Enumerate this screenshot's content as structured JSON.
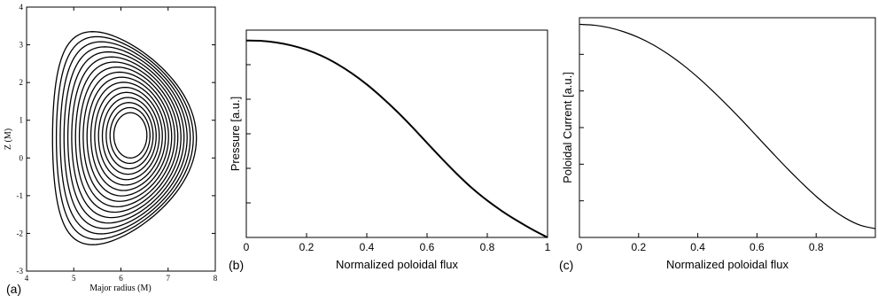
{
  "chart_data": [
    {
      "panel_label": "(a)",
      "type": "contour",
      "title": "",
      "xlabel": "Major radius (M)",
      "ylabel": "Z (M)",
      "xlim": [
        4,
        8
      ],
      "ylim": [
        -3,
        4
      ],
      "xticks": [
        "4",
        "5",
        "6",
        "7",
        "8"
      ],
      "yticks": [
        "-3",
        "-2",
        "-1",
        "0",
        "1",
        "2",
        "3",
        "4"
      ],
      "axis_center": [
        6.2,
        0.55
      ],
      "contour_count": 17,
      "outer_boundary": {
        "r_min": 4.55,
        "r_max": 7.6,
        "z_min": -2.3,
        "z_max": 3.35,
        "r_at_z_max": 5.4,
        "r_at_z_min": 5.4
      },
      "inner_contour": {
        "r_min": 5.85,
        "r_max": 6.55,
        "z_min": 0.0,
        "z_max": 1.2
      }
    },
    {
      "panel_label": "(b)",
      "type": "line",
      "title": "",
      "xlabel": "Normalized poloidal flux",
      "ylabel": "Pressure [a.u.]",
      "xlim": [
        0,
        1
      ],
      "ylim": [
        0,
        1
      ],
      "xticks": [
        "0",
        "0.2",
        "0.4",
        "0.6",
        "0.8",
        "1"
      ],
      "series": [
        {
          "x": [
            0,
            0.05,
            0.1,
            0.15,
            0.2,
            0.25,
            0.3,
            0.35,
            0.4,
            0.45,
            0.5,
            0.55,
            0.6,
            0.65,
            0.7,
            0.75,
            0.8,
            0.85,
            0.9,
            0.95,
            1.0
          ],
          "values": [
            0.95,
            0.948,
            0.94,
            0.926,
            0.905,
            0.876,
            0.838,
            0.792,
            0.738,
            0.676,
            0.608,
            0.534,
            0.456,
            0.379,
            0.305,
            0.237,
            0.178,
            0.126,
            0.08,
            0.038,
            0.0
          ]
        }
      ]
    },
    {
      "panel_label": "(c)",
      "type": "line",
      "title": "",
      "xlabel": "Normalized poloidal flux",
      "ylabel": "Poloidal Current [a.u.]",
      "xlim": [
        0,
        1
      ],
      "ylim": [
        0,
        1
      ],
      "xticks": [
        "0",
        "0.2",
        "0.4",
        "0.6",
        "0.8"
      ],
      "series": [
        {
          "x": [
            0,
            0.05,
            0.1,
            0.15,
            0.2,
            0.25,
            0.3,
            0.35,
            0.4,
            0.45,
            0.5,
            0.55,
            0.6,
            0.65,
            0.7,
            0.75,
            0.8,
            0.85,
            0.9,
            0.95,
            1.0
          ],
          "values": [
            0.97,
            0.966,
            0.955,
            0.936,
            0.91,
            0.876,
            0.834,
            0.785,
            0.729,
            0.667,
            0.601,
            0.532,
            0.46,
            0.388,
            0.317,
            0.25,
            0.187,
            0.132,
            0.087,
            0.055,
            0.04
          ]
        }
      ]
    }
  ]
}
